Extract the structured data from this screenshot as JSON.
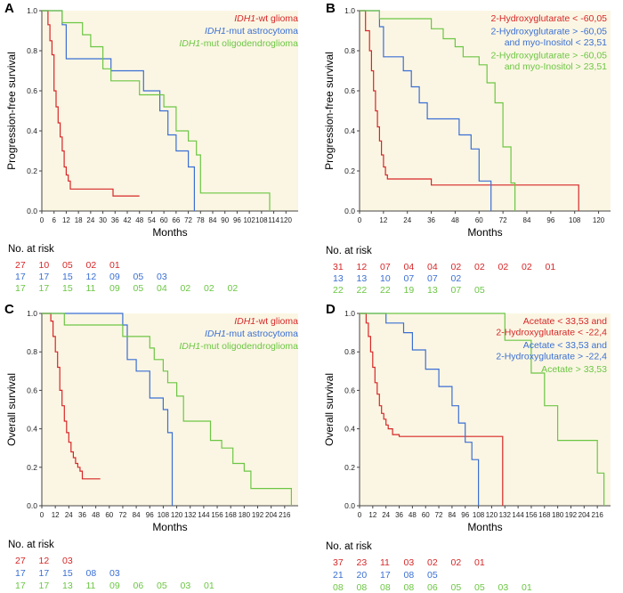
{
  "colors": {
    "red": "#d62728",
    "blue": "#3b6fd4",
    "green": "#6cc644",
    "plot_bg": "#fbf6e3",
    "axis": "#444444"
  },
  "risk_heading": "No. at risk",
  "chart_data": [
    {
      "panel_label": "A",
      "type": "line",
      "title": "",
      "xlabel": "Months",
      "ylabel": "Progression-free survival",
      "xlim": [
        0,
        126
      ],
      "ylim": [
        0,
        1
      ],
      "xticks": [
        "0",
        "6",
        "12",
        "18",
        "24",
        "30",
        "36",
        "42",
        "48",
        "54",
        "60",
        "66",
        "72",
        "78",
        "84",
        "90",
        "96",
        "102",
        "108",
        "114",
        "120"
      ],
      "yticks": [
        "0.0",
        "0.2",
        "0.4",
        "0.6",
        "0.8",
        "1.0"
      ],
      "legend_position": "top-right",
      "series": [
        {
          "name": "IDH1-wt glioma",
          "italic_prefix": "IDH1",
          "name_rest": "-wt glioma",
          "color": "red",
          "x": [
            0,
            3,
            4,
            5,
            6,
            7,
            8,
            9,
            10,
            11,
            12,
            13,
            14,
            15,
            35,
            48
          ],
          "y": [
            1.0,
            0.93,
            0.85,
            0.78,
            0.6,
            0.52,
            0.44,
            0.37,
            0.3,
            0.22,
            0.18,
            0.15,
            0.11,
            0.11,
            0.075,
            0.075
          ]
        },
        {
          "name": "IDH1-mut astrocytoma",
          "italic_prefix": "IDH1",
          "name_rest": "-mut astrocytoma",
          "color": "blue",
          "x": [
            0,
            10,
            12,
            30,
            34,
            46,
            50,
            58,
            62,
            66,
            72,
            75
          ],
          "y": [
            1.0,
            0.93,
            0.76,
            0.76,
            0.7,
            0.7,
            0.6,
            0.5,
            0.38,
            0.3,
            0.22,
            0.0
          ]
        },
        {
          "name": "IDH1-mut oligodendroglioma",
          "italic_prefix": "IDH1",
          "name_rest": "-mut oligodendroglioma",
          "color": "green",
          "x": [
            0,
            10,
            20,
            24,
            30,
            34,
            44,
            48,
            60,
            66,
            72,
            76,
            78,
            112,
            112
          ],
          "y": [
            1.0,
            0.94,
            0.88,
            0.82,
            0.71,
            0.65,
            0.65,
            0.58,
            0.52,
            0.4,
            0.35,
            0.28,
            0.09,
            0.09,
            0.0
          ]
        }
      ],
      "risk_table": [
        {
          "color": "red",
          "values": [
            "27",
            "10",
            "05",
            "02",
            "01"
          ]
        },
        {
          "color": "blue",
          "values": [
            "17",
            "17",
            "15",
            "12",
            "09",
            "05",
            "03"
          ]
        },
        {
          "color": "green",
          "values": [
            "17",
            "17",
            "15",
            "11",
            "09",
            "05",
            "04",
            "02",
            "02",
            "02"
          ]
        }
      ]
    },
    {
      "panel_label": "B",
      "type": "line",
      "title": "",
      "xlabel": "Months",
      "ylabel": "Progression-free survival",
      "xlim": [
        0,
        126
      ],
      "ylim": [
        0,
        1
      ],
      "xticks": [
        "0",
        "12",
        "24",
        "36",
        "48",
        "60",
        "72",
        "84",
        "96",
        "108",
        "120"
      ],
      "yticks": [
        "0.0",
        "0.2",
        "0.4",
        "0.6",
        "0.8",
        "1.0"
      ],
      "legend_position": "top-right",
      "series": [
        {
          "name_lines": [
            "2-Hydroxyglutarate < -60,05"
          ],
          "color": "red",
          "x": [
            0,
            3,
            5,
            6,
            7,
            8,
            9,
            10,
            11,
            12,
            13,
            14,
            15,
            36,
            110,
            110
          ],
          "y": [
            1.0,
            0.9,
            0.8,
            0.7,
            0.6,
            0.5,
            0.42,
            0.35,
            0.28,
            0.22,
            0.18,
            0.16,
            0.16,
            0.13,
            0.13,
            0.0
          ]
        },
        {
          "name_lines": [
            "2-Hydroxyglutarate > -60,05",
            "and myo-Inositol < 23,51"
          ],
          "color": "blue",
          "x": [
            0,
            10,
            12,
            20,
            22,
            26,
            30,
            34,
            50,
            56,
            60,
            66
          ],
          "y": [
            1.0,
            0.92,
            0.77,
            0.77,
            0.7,
            0.62,
            0.54,
            0.46,
            0.38,
            0.31,
            0.15,
            0.0
          ]
        },
        {
          "name_lines": [
            "2-Hydroxyglutarate > -60,05",
            "and myo-Inositol > 23,51"
          ],
          "color": "green",
          "x": [
            0,
            10,
            30,
            36,
            42,
            48,
            52,
            60,
            64,
            68,
            72,
            76,
            78
          ],
          "y": [
            1.0,
            0.96,
            0.96,
            0.91,
            0.86,
            0.82,
            0.77,
            0.73,
            0.64,
            0.54,
            0.32,
            0.14,
            0.0
          ]
        }
      ],
      "risk_table": [
        {
          "color": "red",
          "values": [
            "31",
            "12",
            "07",
            "04",
            "04",
            "02",
            "02",
            "02",
            "02",
            "01"
          ]
        },
        {
          "color": "blue",
          "values": [
            "13",
            "13",
            "10",
            "07",
            "07",
            "02"
          ]
        },
        {
          "color": "green",
          "values": [
            "22",
            "22",
            "22",
            "19",
            "13",
            "07",
            "05"
          ]
        }
      ]
    },
    {
      "panel_label": "C",
      "type": "line",
      "title": "",
      "xlabel": "Months",
      "ylabel": "Overall survival",
      "xlim": [
        0,
        228
      ],
      "ylim": [
        0,
        1
      ],
      "xticks": [
        "0",
        "12",
        "24",
        "36",
        "48",
        "60",
        "72",
        "84",
        "96",
        "108",
        "120",
        "132",
        "144",
        "156",
        "168",
        "180",
        "192",
        "204",
        "216"
      ],
      "yticks": [
        "0.0",
        "0.2",
        "0.4",
        "0.6",
        "0.8",
        "1.0"
      ],
      "legend_position": "top-right",
      "series": [
        {
          "name": "IDH1-wt glioma",
          "italic_prefix": "IDH1",
          "name_rest": "-wt glioma",
          "color": "red",
          "x": [
            0,
            8,
            10,
            12,
            14,
            16,
            18,
            20,
            22,
            24,
            26,
            28,
            30,
            32,
            34,
            36,
            40,
            52
          ],
          "y": [
            1.0,
            0.96,
            0.88,
            0.8,
            0.72,
            0.6,
            0.52,
            0.44,
            0.38,
            0.33,
            0.28,
            0.25,
            0.22,
            0.2,
            0.18,
            0.14,
            0.14,
            0.14
          ]
        },
        {
          "name": "IDH1-mut astrocytoma",
          "italic_prefix": "IDH1",
          "name_rest": "-mut astrocytoma",
          "color": "blue",
          "x": [
            0,
            48,
            72,
            76,
            84,
            96,
            108,
            112,
            116
          ],
          "y": [
            1.0,
            1.0,
            0.94,
            0.76,
            0.7,
            0.56,
            0.5,
            0.38,
            0.0
          ]
        },
        {
          "name": "IDH1-mut oligodendroglioma",
          "italic_prefix": "IDH1",
          "name_rest": "-mut oligodendroglioma",
          "color": "green",
          "x": [
            0,
            20,
            48,
            72,
            96,
            100,
            108,
            112,
            120,
            126,
            144,
            150,
            160,
            170,
            180,
            186,
            216,
            222
          ],
          "y": [
            1.0,
            0.94,
            0.94,
            0.88,
            0.82,
            0.76,
            0.7,
            0.64,
            0.57,
            0.44,
            0.44,
            0.34,
            0.3,
            0.22,
            0.18,
            0.09,
            0.09,
            0.0
          ]
        }
      ],
      "risk_table": [
        {
          "color": "red",
          "values": [
            "27",
            "12",
            "03"
          ]
        },
        {
          "color": "blue",
          "values": [
            "17",
            "17",
            "15",
            "08",
            "03"
          ]
        },
        {
          "color": "green",
          "values": [
            "17",
            "17",
            "13",
            "11",
            "09",
            "06",
            "05",
            "03",
            "01"
          ]
        }
      ]
    },
    {
      "panel_label": "D",
      "type": "line",
      "title": "",
      "xlabel": "Months",
      "ylabel": "Overall survival",
      "xlim": [
        0,
        228
      ],
      "ylim": [
        0,
        1
      ],
      "xticks": [
        "0",
        "12",
        "24",
        "36",
        "48",
        "60",
        "72",
        "84",
        "96",
        "108",
        "120",
        "132",
        "144",
        "156",
        "168",
        "180",
        "192",
        "204",
        "216"
      ],
      "yticks": [
        "0.0",
        "0.2",
        "0.4",
        "0.6",
        "0.8",
        "1.0"
      ],
      "legend_position": "top-right",
      "series": [
        {
          "name_lines": [
            "Acetate < 33,53  and",
            "2-Hydroxyglutarate < -22,4"
          ],
          "color": "red",
          "x": [
            0,
            6,
            8,
            10,
            12,
            14,
            16,
            18,
            20,
            22,
            24,
            26,
            30,
            36,
            40,
            48,
            130,
            130
          ],
          "y": [
            1.0,
            0.95,
            0.88,
            0.8,
            0.72,
            0.64,
            0.58,
            0.52,
            0.48,
            0.45,
            0.42,
            0.4,
            0.37,
            0.36,
            0.36,
            0.36,
            0.36,
            0.0
          ]
        },
        {
          "name_lines": [
            "Acetate < 33,53 and",
            "2-Hydroxyglutarate > -22,4"
          ],
          "color": "blue",
          "x": [
            0,
            24,
            40,
            48,
            60,
            72,
            84,
            90,
            96,
            102,
            108
          ],
          "y": [
            1.0,
            0.95,
            0.9,
            0.81,
            0.71,
            0.62,
            0.52,
            0.43,
            0.33,
            0.24,
            0.0
          ]
        },
        {
          "name_lines": [
            "Acetate > 33,53"
          ],
          "color": "green",
          "x": [
            0,
            84,
            132,
            156,
            168,
            180,
            216,
            222
          ],
          "y": [
            1.0,
            1.0,
            0.86,
            0.69,
            0.52,
            0.34,
            0.17,
            0.0
          ]
        }
      ],
      "risk_table": [
        {
          "color": "red",
          "values": [
            "37",
            "23",
            "11",
            "03",
            "02",
            "02",
            "01"
          ]
        },
        {
          "color": "blue",
          "values": [
            "21",
            "20",
            "17",
            "08",
            "05"
          ]
        },
        {
          "color": "green",
          "values": [
            "08",
            "08",
            "08",
            "08",
            "06",
            "05",
            "05",
            "03",
            "01"
          ]
        }
      ]
    }
  ]
}
